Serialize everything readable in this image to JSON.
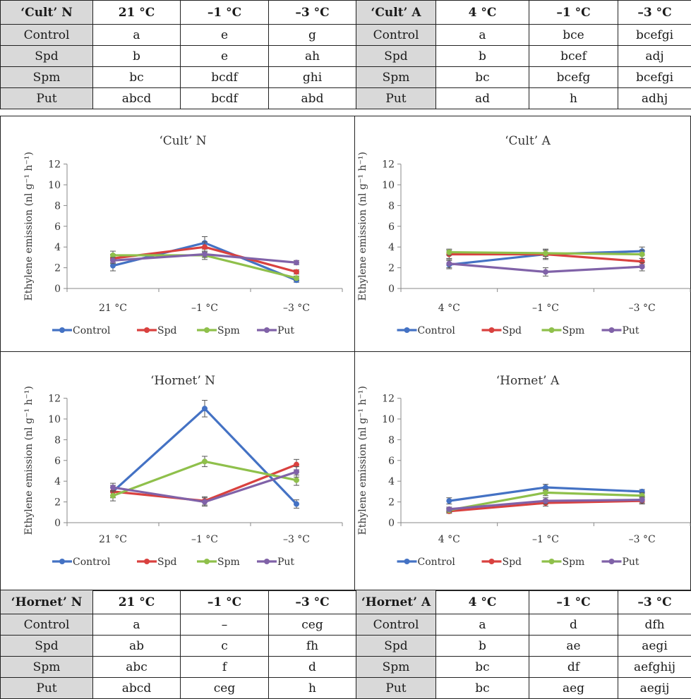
{
  "colors": {
    "Control": "#4472c4",
    "Spd": "#d9413f",
    "Spm": "#8fc04b",
    "Put": "#8062a8",
    "header_shade": "#d9d9d9"
  },
  "tables": [
    {
      "rows": [
        [
          "‘Cult’ N",
          "21 °C",
          "–1 °C",
          "–3 °C",
          "‘Cult’ A",
          "4 °C",
          "–1 °C",
          "–3 °C"
        ],
        [
          "Control",
          "a",
          "e",
          "g",
          "Control",
          "a",
          "bce",
          "bcefgi"
        ],
        [
          "Spd",
          "b",
          "e",
          "ah",
          "Spd",
          "b",
          "bcef",
          "adj"
        ],
        [
          "Spm",
          "bc",
          "bcdf",
          "ghi",
          "Spm",
          "bc",
          "bcefg",
          "bcefgi"
        ],
        [
          "Put",
          "abcd",
          "bcdf",
          "abd",
          "Put",
          "ad",
          "h",
          "adhj"
        ]
      ]
    },
    {
      "rows": [
        [
          "‘Hornet’ N",
          "21 °C",
          "–1 °C",
          "–3 °C",
          "‘Hornet’ A",
          "4 °C",
          "–1 °C",
          "–3 °C"
        ],
        [
          "Control",
          "a",
          "–",
          "ceg",
          "Control",
          "a",
          "d",
          "dfh"
        ],
        [
          "Spd",
          "ab",
          "c",
          "fh",
          "Spd",
          "b",
          "ae",
          "aegi"
        ],
        [
          "Spm",
          "abc",
          "f",
          "d",
          "Spm",
          "bc",
          "df",
          "aefghij"
        ],
        [
          "Put",
          "abcd",
          "ceg",
          "h",
          "Put",
          "bc",
          "aeg",
          "aegij"
        ]
      ]
    }
  ],
  "chart_data": [
    {
      "type": "line",
      "title": "‘Cult’ N",
      "ylabel": "Ethylene emission (nl g⁻¹ h⁻¹)",
      "ylim": [
        0,
        12
      ],
      "yticks": [
        "0",
        "2",
        "4",
        "6",
        "8",
        "10",
        "12"
      ],
      "categories": [
        "21 °C",
        "–1 °C",
        "–3 °C"
      ],
      "legend": "bottom",
      "series": [
        {
          "name": "Control",
          "values": [
            2.2,
            4.4,
            0.8
          ],
          "errors": [
            0.5,
            0.6,
            0.2
          ]
        },
        {
          "name": "Spd",
          "values": [
            2.9,
            4.0,
            1.6
          ],
          "errors": [
            0.4,
            0.5,
            0.2
          ]
        },
        {
          "name": "Spm",
          "values": [
            3.2,
            3.2,
            1.0
          ],
          "errors": [
            0.4,
            0.4,
            0.2
          ]
        },
        {
          "name": "Put",
          "values": [
            2.7,
            3.3,
            2.5
          ],
          "errors": [
            0.3,
            0.3,
            0.2
          ]
        }
      ]
    },
    {
      "type": "line",
      "title": "‘Cult’ A",
      "ylabel": "Ethylene emission (nl g⁻¹ h⁻¹)",
      "ylim": [
        0,
        12
      ],
      "yticks": [
        "0",
        "2",
        "4",
        "6",
        "8",
        "10",
        "12"
      ],
      "categories": [
        "4 °C",
        "–1 °C",
        "–3 °C"
      ],
      "legend": "bottom",
      "series": [
        {
          "name": "Control",
          "values": [
            2.3,
            3.3,
            3.6
          ],
          "errors": [
            0.4,
            0.4,
            0.4
          ]
        },
        {
          "name": "Spd",
          "values": [
            3.3,
            3.3,
            2.6
          ],
          "errors": [
            0.4,
            0.5,
            0.3
          ]
        },
        {
          "name": "Spm",
          "values": [
            3.5,
            3.4,
            3.3
          ],
          "errors": [
            0.3,
            0.3,
            0.4
          ]
        },
        {
          "name": "Put",
          "values": [
            2.4,
            1.6,
            2.1
          ],
          "errors": [
            0.4,
            0.4,
            0.4
          ]
        }
      ]
    },
    {
      "type": "line",
      "title": "‘Hornet’ N",
      "ylabel": "Ethylene emission (nl g⁻¹ h⁻¹)",
      "ylim": [
        0,
        12
      ],
      "yticks": [
        "0",
        "2",
        "4",
        "6",
        "8",
        "10",
        "12"
      ],
      "categories": [
        "21 °C",
        "–1 °C",
        "–3 °C"
      ],
      "legend": "bottom",
      "series": [
        {
          "name": "Control",
          "values": [
            3.0,
            11.0,
            1.8
          ],
          "errors": [
            0.6,
            0.8,
            0.4
          ]
        },
        {
          "name": "Spd",
          "values": [
            3.0,
            2.1,
            5.6
          ],
          "errors": [
            0.4,
            0.4,
            0.5
          ]
        },
        {
          "name": "Spm",
          "values": [
            2.6,
            5.9,
            4.1
          ],
          "errors": [
            0.5,
            0.5,
            0.5
          ]
        },
        {
          "name": "Put",
          "values": [
            3.4,
            2.0,
            4.9
          ],
          "errors": [
            0.4,
            0.4,
            0.5
          ]
        }
      ]
    },
    {
      "type": "line",
      "title": "‘Hornet’ A",
      "ylabel": "Ethylene emission (nl g⁻¹ h⁻¹)",
      "ylim": [
        0,
        12
      ],
      "yticks": [
        "0",
        "2",
        "4",
        "6",
        "8",
        "10",
        "12"
      ],
      "categories": [
        "4 °C",
        "–1 °C",
        "–3 °C"
      ],
      "legend": "bottom",
      "series": [
        {
          "name": "Control",
          "values": [
            2.1,
            3.4,
            3.0
          ],
          "errors": [
            0.3,
            0.3,
            0.2
          ]
        },
        {
          "name": "Spd",
          "values": [
            1.1,
            1.9,
            2.1
          ],
          "errors": [
            0.2,
            0.3,
            0.3
          ]
        },
        {
          "name": "Spm",
          "values": [
            1.2,
            2.9,
            2.6
          ],
          "errors": [
            0.2,
            0.3,
            0.3
          ]
        },
        {
          "name": "Put",
          "values": [
            1.3,
            2.1,
            2.2
          ],
          "errors": [
            0.2,
            0.3,
            0.3
          ]
        }
      ]
    }
  ]
}
